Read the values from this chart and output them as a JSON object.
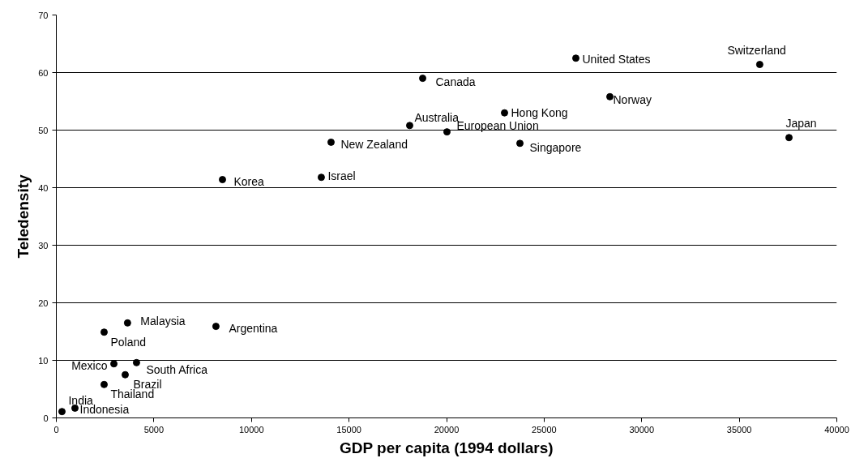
{
  "chart_data": {
    "type": "scatter",
    "xlabel": "GDP per capita (1994 dollars)",
    "ylabel": "Teledensity",
    "x": [
      290,
      955,
      2450,
      2450,
      2950,
      3530,
      3650,
      4110,
      8180,
      8515,
      13580,
      14080,
      18110,
      18775,
      20020,
      22970,
      23760,
      26625,
      28370,
      36050,
      37550
    ],
    "values": [
      1.1,
      1.7,
      5.8,
      14.9,
      9.4,
      7.5,
      16.5,
      9.6,
      15.9,
      41.4,
      41.8,
      47.9,
      50.8,
      59.0,
      49.7,
      53.0,
      47.7,
      62.5,
      55.8,
      61.4,
      48.7
    ],
    "color": "#000000",
    "marker": "circle",
    "grid": "y",
    "legend": false,
    "xlim": [
      0,
      40000
    ],
    "ylim": [
      0,
      70
    ],
    "xticks": [
      0,
      5000,
      10000,
      15000,
      20000,
      25000,
      30000,
      35000,
      40000
    ],
    "yticks": [
      0,
      10,
      20,
      30,
      40,
      50,
      60,
      70
    ],
    "annotations": [
      {
        "text": "India",
        "x": 290,
        "y": 1.1
      },
      {
        "text": "Indonesia",
        "x": 955,
        "y": 1.7
      },
      {
        "text": "Thailand",
        "x": 2450,
        "y": 5.8
      },
      {
        "text": "Poland",
        "x": 2450,
        "y": 14.9
      },
      {
        "text": "Mexico",
        "x": 2950,
        "y": 9.4
      },
      {
        "text": "Brazil",
        "x": 3530,
        "y": 7.5
      },
      {
        "text": "Malaysia",
        "x": 3650,
        "y": 16.5
      },
      {
        "text": "South Africa",
        "x": 4110,
        "y": 9.6
      },
      {
        "text": "Argentina",
        "x": 8180,
        "y": 15.9
      },
      {
        "text": "Korea",
        "x": 8515,
        "y": 41.4
      },
      {
        "text": "Israel",
        "x": 13580,
        "y": 41.8
      },
      {
        "text": "New Zealand",
        "x": 14080,
        "y": 47.9
      },
      {
        "text": "Australia",
        "x": 18110,
        "y": 50.8
      },
      {
        "text": "Canada",
        "x": 18775,
        "y": 59.0
      },
      {
        "text": "European Union",
        "x": 20020,
        "y": 49.7
      },
      {
        "text": "Hong Kong",
        "x": 22970,
        "y": 53.0
      },
      {
        "text": "Singapore",
        "x": 23760,
        "y": 47.7
      },
      {
        "text": "United States",
        "x": 26625,
        "y": 62.5
      },
      {
        "text": "Norway",
        "x": 28370,
        "y": 55.8
      },
      {
        "text": "Switzerland",
        "x": 36050,
        "y": 61.4
      },
      {
        "text": "Japan",
        "x": 37550,
        "y": 48.7
      }
    ]
  }
}
